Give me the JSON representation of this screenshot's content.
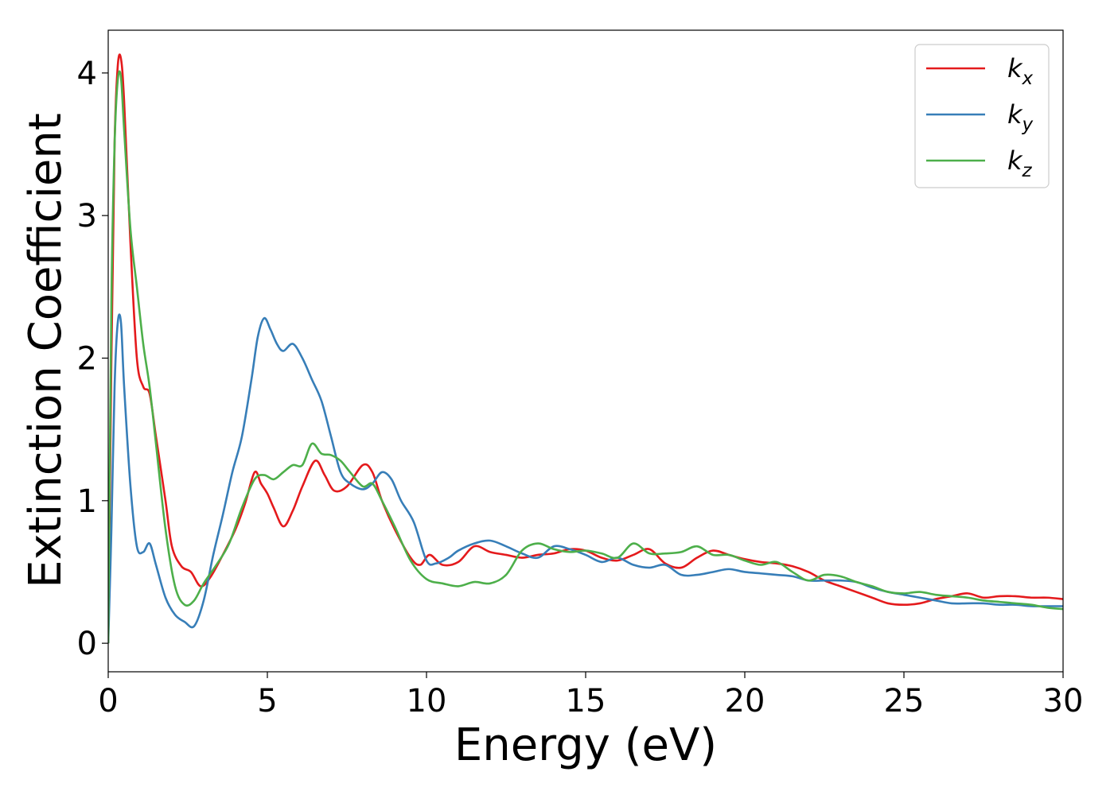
{
  "chart_data": {
    "type": "line",
    "title": "",
    "xlabel": "Energy (eV)",
    "ylabel": "Extinction Coefficient",
    "xlim": [
      0,
      30
    ],
    "ylim": [
      -0.2,
      4.3
    ],
    "xticks": [
      0,
      5,
      10,
      15,
      20,
      25,
      30
    ],
    "yticks": [
      0,
      1,
      2,
      3,
      4
    ],
    "grid": false,
    "legend_position": "top-right",
    "series": [
      {
        "name": "kx",
        "legend_base": "k",
        "legend_sub": "x",
        "color": "#e41a1c",
        "x": [
          0,
          0.1,
          0.2,
          0.3,
          0.4,
          0.5,
          0.7,
          0.9,
          1.1,
          1.3,
          1.5,
          1.8,
          2.0,
          2.3,
          2.6,
          2.9,
          3.2,
          3.6,
          4.0,
          4.3,
          4.6,
          4.8,
          5.0,
          5.2,
          5.5,
          5.8,
          6.1,
          6.5,
          6.8,
          7.1,
          7.5,
          8.0,
          8.3,
          8.6,
          9.0,
          9.5,
          9.8,
          10.1,
          10.5,
          11.0,
          11.5,
          12.0,
          12.5,
          13.0,
          13.5,
          14.0,
          14.5,
          15.0,
          15.5,
          16.0,
          16.5,
          17.0,
          17.5,
          18.0,
          18.5,
          19.0,
          19.5,
          20.0,
          20.5,
          21.0,
          21.5,
          22.0,
          22.5,
          23.0,
          23.5,
          24.0,
          24.5,
          25.0,
          25.5,
          26.0,
          26.5,
          27.0,
          27.5,
          28.0,
          28.5,
          29.0,
          29.5,
          30.0
        ],
        "y": [
          0,
          2.0,
          3.5,
          4.05,
          4.1,
          3.8,
          2.8,
          2.0,
          1.8,
          1.75,
          1.45,
          1.0,
          0.68,
          0.54,
          0.5,
          0.4,
          0.46,
          0.62,
          0.8,
          0.98,
          1.2,
          1.12,
          1.05,
          0.95,
          0.82,
          0.93,
          1.1,
          1.28,
          1.18,
          1.07,
          1.1,
          1.25,
          1.2,
          1.0,
          0.8,
          0.6,
          0.55,
          0.62,
          0.55,
          0.57,
          0.68,
          0.64,
          0.62,
          0.6,
          0.62,
          0.63,
          0.66,
          0.65,
          0.6,
          0.58,
          0.62,
          0.66,
          0.56,
          0.53,
          0.6,
          0.65,
          0.62,
          0.59,
          0.57,
          0.56,
          0.54,
          0.5,
          0.44,
          0.4,
          0.36,
          0.32,
          0.28,
          0.27,
          0.28,
          0.31,
          0.33,
          0.35,
          0.32,
          0.33,
          0.33,
          0.32,
          0.32,
          0.31
        ]
      },
      {
        "name": "ky",
        "legend_base": "k",
        "legend_sub": "y",
        "color": "#377eb8",
        "x": [
          0,
          0.1,
          0.2,
          0.3,
          0.4,
          0.5,
          0.7,
          0.9,
          1.1,
          1.3,
          1.5,
          1.8,
          2.1,
          2.4,
          2.7,
          3.0,
          3.3,
          3.6,
          3.9,
          4.2,
          4.5,
          4.7,
          4.9,
          5.1,
          5.3,
          5.5,
          5.8,
          6.1,
          6.4,
          6.7,
          7.0,
          7.3,
          7.6,
          8.0,
          8.3,
          8.6,
          8.9,
          9.2,
          9.6,
          10.0,
          10.3,
          10.7,
          11.0,
          11.5,
          12.0,
          12.5,
          13.0,
          13.5,
          14.0,
          14.5,
          15.0,
          15.5,
          16.0,
          16.5,
          17.0,
          17.5,
          18.0,
          18.5,
          19.0,
          19.5,
          20.0,
          20.5,
          21.0,
          21.5,
          22.0,
          22.5,
          23.0,
          23.5,
          24.0,
          24.5,
          25.0,
          25.5,
          26.0,
          26.5,
          27.0,
          27.5,
          28.0,
          28.5,
          29.0,
          29.5,
          30.0
        ],
        "y": [
          0,
          0.8,
          1.8,
          2.25,
          2.25,
          1.8,
          1.1,
          0.68,
          0.64,
          0.7,
          0.55,
          0.32,
          0.2,
          0.15,
          0.12,
          0.3,
          0.62,
          0.9,
          1.2,
          1.45,
          1.85,
          2.15,
          2.28,
          2.2,
          2.1,
          2.05,
          2.1,
          2.0,
          1.85,
          1.7,
          1.45,
          1.2,
          1.12,
          1.08,
          1.12,
          1.2,
          1.15,
          1.0,
          0.85,
          0.58,
          0.56,
          0.6,
          0.65,
          0.7,
          0.72,
          0.68,
          0.63,
          0.6,
          0.68,
          0.66,
          0.62,
          0.57,
          0.6,
          0.55,
          0.53,
          0.55,
          0.48,
          0.48,
          0.5,
          0.52,
          0.5,
          0.49,
          0.48,
          0.47,
          0.44,
          0.44,
          0.44,
          0.43,
          0.39,
          0.36,
          0.34,
          0.32,
          0.3,
          0.28,
          0.28,
          0.28,
          0.27,
          0.27,
          0.26,
          0.26,
          0.26
        ]
      },
      {
        "name": "kz",
        "legend_base": "k",
        "legend_sub": "z",
        "color": "#4daf4a",
        "x": [
          0,
          0.1,
          0.2,
          0.3,
          0.4,
          0.5,
          0.7,
          0.9,
          1.1,
          1.3,
          1.5,
          1.8,
          2.1,
          2.4,
          2.7,
          3.0,
          3.4,
          3.8,
          4.2,
          4.6,
          4.9,
          5.2,
          5.5,
          5.8,
          6.1,
          6.4,
          6.7,
          7.0,
          7.3,
          7.6,
          8.0,
          8.3,
          8.6,
          9.0,
          9.5,
          10.0,
          10.5,
          11.0,
          11.5,
          12.0,
          12.5,
          13.0,
          13.5,
          14.0,
          14.5,
          15.0,
          15.5,
          16.0,
          16.5,
          17.0,
          17.5,
          18.0,
          18.5,
          19.0,
          19.5,
          20.0,
          20.5,
          21.0,
          21.5,
          22.0,
          22.5,
          23.0,
          23.5,
          24.0,
          24.5,
          25.0,
          25.5,
          26.0,
          26.5,
          27.0,
          27.5,
          28.0,
          28.5,
          29.0,
          29.5,
          30.0
        ],
        "y": [
          0,
          2.4,
          3.5,
          3.95,
          3.97,
          3.6,
          2.9,
          2.5,
          2.1,
          1.8,
          1.4,
          0.8,
          0.4,
          0.27,
          0.3,
          0.42,
          0.55,
          0.7,
          0.95,
          1.15,
          1.18,
          1.15,
          1.2,
          1.25,
          1.25,
          1.4,
          1.33,
          1.32,
          1.28,
          1.2,
          1.1,
          1.12,
          1.0,
          0.82,
          0.58,
          0.45,
          0.42,
          0.4,
          0.43,
          0.42,
          0.48,
          0.65,
          0.7,
          0.66,
          0.64,
          0.65,
          0.63,
          0.6,
          0.7,
          0.63,
          0.63,
          0.64,
          0.68,
          0.62,
          0.62,
          0.58,
          0.55,
          0.57,
          0.5,
          0.44,
          0.48,
          0.47,
          0.43,
          0.4,
          0.36,
          0.35,
          0.36,
          0.34,
          0.33,
          0.32,
          0.3,
          0.29,
          0.28,
          0.27,
          0.25,
          0.24
        ]
      }
    ]
  }
}
